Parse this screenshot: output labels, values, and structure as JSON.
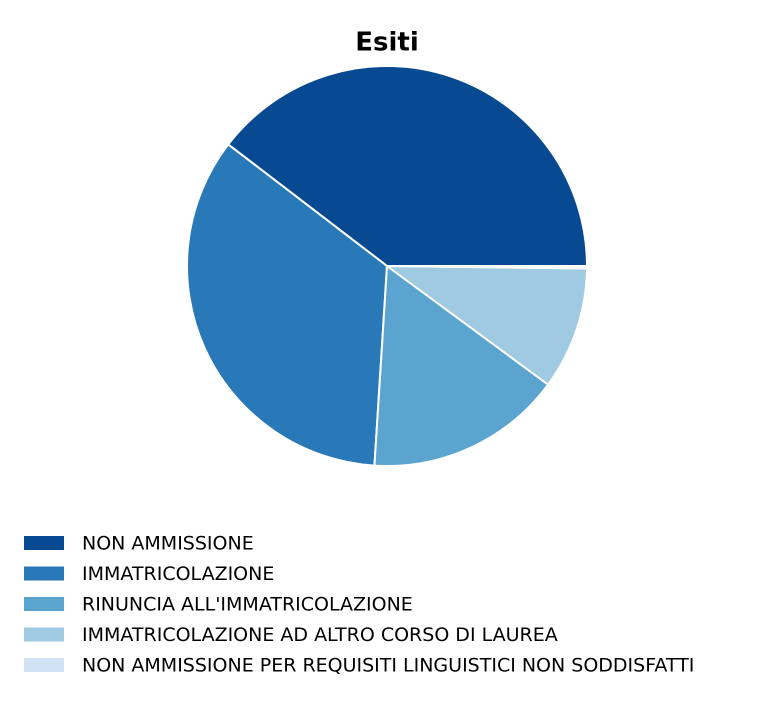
{
  "chart_data": {
    "type": "pie",
    "title": "Esiti",
    "categories": [
      "NON AMMISSIONE",
      "IMMATRICOLAZIONE",
      "RINUNCIA ALL'IMMATRICOLAZIONE",
      "IMMATRICOLAZIONE AD ALTRO CORSO DI LAUREA",
      "NON AMMISSIONE PER REQUISITI LINGUISTICI NON SODDISFATTI"
    ],
    "values": [
      39.6,
      34.4,
      15.9,
      9.9,
      0.2
    ],
    "colors": [
      "#084a91",
      "#2979b9",
      "#5ca4d0",
      "#9fcae1",
      "#d0e2f3"
    ],
    "legend": "bottom-left"
  }
}
